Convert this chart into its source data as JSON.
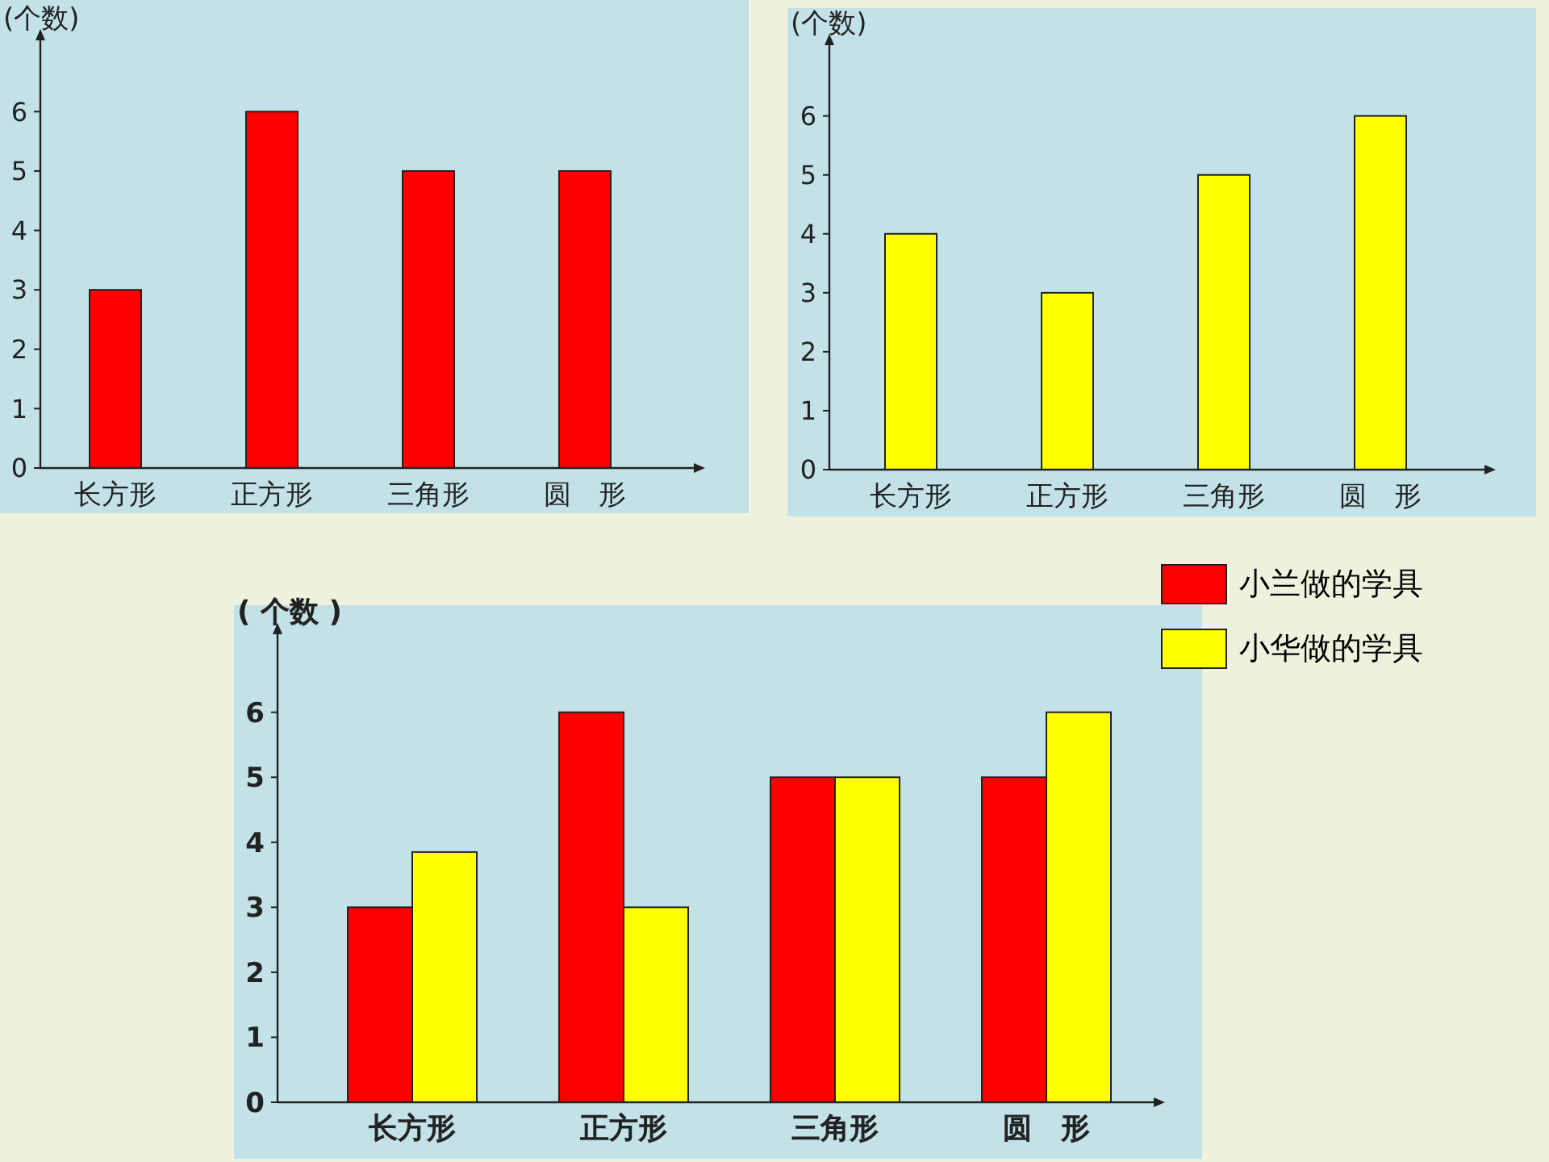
{
  "chart_data": [
    {
      "type": "bar",
      "ylabel": "(个数)",
      "categories": [
        "长方形",
        "正方形",
        "三角形",
        "圆　形"
      ],
      "values": [
        3,
        6,
        5,
        5
      ],
      "color": "#ff0000",
      "ylim": [
        0,
        7.2
      ],
      "yticks": [
        0,
        1,
        2,
        3,
        4,
        5,
        6
      ]
    },
    {
      "type": "bar",
      "ylabel": "(个数)",
      "categories": [
        "长方形",
        "正方形",
        "三角形",
        "圆　形"
      ],
      "values": [
        4,
        3,
        5,
        6
      ],
      "color": "#ffff00",
      "ylim": [
        0,
        7.2
      ],
      "yticks": [
        0,
        1,
        2,
        3,
        4,
        5,
        6
      ]
    },
    {
      "type": "bar",
      "ylabel": "( 个数 )",
      "categories": [
        "长方形",
        "正方形",
        "三角形",
        "圆　形"
      ],
      "legend": "top right",
      "ylim": [
        0,
        7.2
      ],
      "yticks": [
        0,
        1,
        2,
        3,
        4,
        5,
        6
      ],
      "series": [
        {
          "name": "小兰做的学具",
          "color": "#ff0000",
          "values": [
            3,
            6,
            5,
            5
          ]
        },
        {
          "name": "小华做的学具",
          "color": "#ffff00",
          "values": [
            3.85,
            3,
            5,
            6
          ]
        }
      ]
    }
  ]
}
